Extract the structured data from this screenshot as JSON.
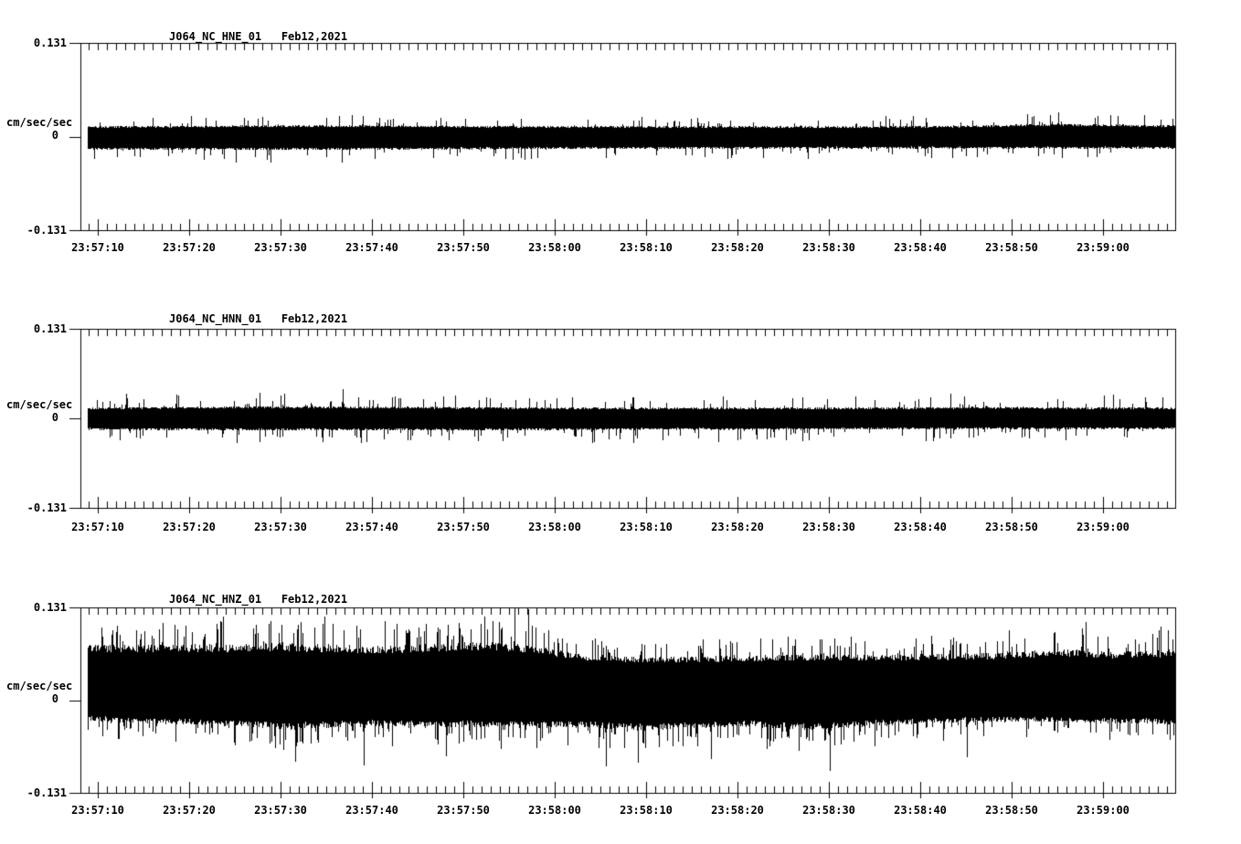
{
  "page": {
    "background": "#ffffff",
    "ink": "#000000"
  },
  "chart_data": [
    {
      "type": "line",
      "panel_index": 0,
      "title": "J064_NC_HNE_01   Feb12,2021",
      "ylabel": "cm/sec/sec",
      "ylim": [
        -0.131,
        0.131
      ],
      "yticks": [
        {
          "label": "0.131",
          "value": 0.131
        },
        {
          "label": "0",
          "value": 0
        },
        {
          "label": "-0.131",
          "value": -0.131
        }
      ],
      "x_ticks": {
        "labels": [
          "23:57:10",
          "23:57:20",
          "23:57:30",
          "23:57:40",
          "23:57:50",
          "23:58:00",
          "23:58:10",
          "23:58:20",
          "23:58:30",
          "23:58:40",
          "23:58:50",
          "23:59:00"
        ],
        "major_interval_s": 10,
        "minor_interval_s": 1,
        "duration_s": 120,
        "first_major_offset_s": 1.9
      },
      "grid": false,
      "legend": false,
      "signal": {
        "kind": "accelerometer-noise-envelope",
        "envelope_format": "[t_seconds_from_left_edge, upper_amp, lower_amp] in cm/sec/sec",
        "seed": 11,
        "dc_offset": 0,
        "envelope": [
          [
            0,
            0.015,
            0.019
          ],
          [
            25,
            0.016,
            0.019
          ],
          [
            50,
            0.015,
            0.018
          ],
          [
            75,
            0.0145,
            0.017
          ],
          [
            95,
            0.015,
            0.017
          ],
          [
            107,
            0.018,
            0.017
          ],
          [
            120,
            0.016,
            0.017
          ]
        ],
        "spike_probability": 0.08,
        "spike_gain": 2.0,
        "spikes": [
          [
            107,
            "up",
            0.034
          ]
        ]
      }
    },
    {
      "type": "line",
      "panel_index": 1,
      "title": "J064_NC_HNN_01   Feb12,2021",
      "ylabel": "cm/sec/sec",
      "ylim": [
        -0.131,
        0.131
      ],
      "yticks": [
        {
          "label": "0.131",
          "value": 0.131
        },
        {
          "label": "0",
          "value": 0
        },
        {
          "label": "-0.131",
          "value": -0.131
        }
      ],
      "x_ticks": {
        "labels": [
          "23:57:10",
          "23:57:20",
          "23:57:30",
          "23:57:40",
          "23:57:50",
          "23:58:00",
          "23:58:10",
          "23:58:20",
          "23:58:30",
          "23:58:40",
          "23:58:50",
          "23:59:00"
        ],
        "major_interval_s": 10,
        "minor_interval_s": 1,
        "duration_s": 120,
        "first_major_offset_s": 1.9
      },
      "grid": false,
      "legend": false,
      "signal": {
        "kind": "accelerometer-noise-envelope",
        "envelope_format": "[t_seconds_from_left_edge, upper_amp, lower_amp] in cm/sec/sec",
        "seed": 22,
        "dc_offset": 0,
        "envelope": [
          [
            0,
            0.016,
            0.017
          ],
          [
            20,
            0.018,
            0.018
          ],
          [
            40,
            0.017,
            0.018
          ],
          [
            60,
            0.016,
            0.017
          ],
          [
            80,
            0.016,
            0.017
          ],
          [
            100,
            0.017,
            0.016
          ],
          [
            120,
            0.016,
            0.016
          ]
        ],
        "spike_probability": 0.09,
        "spike_gain": 2.2,
        "spikes": [
          [
            5,
            "up",
            0.036
          ],
          [
            28.7,
            "up",
            0.043
          ],
          [
            56,
            "down",
            0.036
          ]
        ]
      }
    },
    {
      "type": "line",
      "panel_index": 2,
      "title": "J064_NC_HNZ_01   Feb12,2021",
      "ylabel": "cm/sec/sec",
      "ylim": [
        -0.131,
        0.131
      ],
      "yticks": [
        {
          "label": "0.131",
          "value": 0.131
        },
        {
          "label": "0",
          "value": 0
        },
        {
          "label": "-0.131",
          "value": -0.131
        }
      ],
      "x_ticks": {
        "labels": [
          "23:57:10",
          "23:57:20",
          "23:57:30",
          "23:57:40",
          "23:57:50",
          "23:58:00",
          "23:58:10",
          "23:58:20",
          "23:58:30",
          "23:58:40",
          "23:58:50",
          "23:59:00"
        ],
        "major_interval_s": 10,
        "minor_interval_s": 1,
        "duration_s": 120,
        "first_major_offset_s": 1.9
      },
      "grid": false,
      "legend": false,
      "signal": {
        "kind": "accelerometer-noise-envelope",
        "envelope_format": "[t_seconds_from_left_edge, upper_amp, lower_amp] in cm/sec/sec",
        "seed": 33,
        "dc_offset": 0.013,
        "envelope": [
          [
            0,
            0.066,
            0.042
          ],
          [
            12,
            0.066,
            0.048
          ],
          [
            22,
            0.068,
            0.054
          ],
          [
            32,
            0.064,
            0.05
          ],
          [
            45,
            0.07,
            0.052
          ],
          [
            50,
            0.064,
            0.052
          ],
          [
            55,
            0.052,
            0.052
          ],
          [
            62,
            0.048,
            0.056
          ],
          [
            72,
            0.05,
            0.05
          ],
          [
            80,
            0.052,
            0.056
          ],
          [
            90,
            0.052,
            0.048
          ],
          [
            100,
            0.054,
            0.044
          ],
          [
            107,
            0.06,
            0.044
          ],
          [
            112,
            0.056,
            0.046
          ],
          [
            120,
            0.058,
            0.048
          ]
        ],
        "spike_probability": 0.17,
        "spike_gain": 1.6,
        "spikes": [
          [
            23.5,
            "down",
            0.1
          ],
          [
            31,
            "down",
            0.105
          ],
          [
            40,
            "down",
            0.092
          ],
          [
            47.5,
            "up",
            0.127
          ],
          [
            49,
            "up",
            0.116
          ],
          [
            57.5,
            "down",
            0.107
          ],
          [
            61,
            "down",
            0.102
          ],
          [
            69,
            "down",
            0.096
          ],
          [
            82,
            "down",
            0.113
          ],
          [
            97,
            "down",
            0.094
          ],
          [
            110,
            "up",
            0.097
          ]
        ]
      }
    }
  ]
}
